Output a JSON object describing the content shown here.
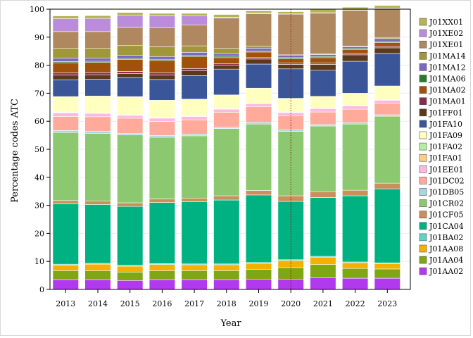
{
  "chart_data": {
    "type": "bar",
    "stacked": true,
    "title": "",
    "xlabel": "Year",
    "ylabel": "Percentage codes ATC",
    "ylim": [
      0,
      100
    ],
    "yticks": [
      0,
      10,
      20,
      30,
      40,
      50,
      60,
      70,
      80,
      90,
      100
    ],
    "legend_position": "right",
    "reference_line": {
      "x": "2020",
      "style": "dotted",
      "color": "#8B1A1A"
    },
    "categories": [
      "2013",
      "2014",
      "2015",
      "2016",
      "2017",
      "2018",
      "2019",
      "2020",
      "2021",
      "2022",
      "2023"
    ],
    "series": [
      {
        "name": "J01AA02",
        "color": "#B23AEE",
        "values": [
          3.5,
          3.5,
          3.2,
          3.5,
          3.5,
          3.5,
          3.7,
          3.7,
          4.2,
          4.0,
          4.0
        ]
      },
      {
        "name": "J01AA04",
        "color": "#7FA613",
        "values": [
          3.2,
          3.2,
          3.0,
          3.2,
          3.2,
          3.2,
          3.5,
          4.1,
          4.7,
          3.5,
          3.3
        ]
      },
      {
        "name": "J01AA08",
        "color": "#F5B000",
        "values": [
          2.0,
          2.3,
          2.1,
          2.2,
          2.1,
          2.1,
          2.1,
          2.5,
          2.6,
          2.0,
          1.9
        ]
      },
      {
        "name": "J01BA02",
        "color": "#5FD4C4",
        "values": [
          0.3,
          0.3,
          0.3,
          0.3,
          0.3,
          0.3,
          0.3,
          0.3,
          0.3,
          0.3,
          0.3
        ]
      },
      {
        "name": "J01CA04",
        "color": "#00B282",
        "values": [
          21.5,
          21.0,
          21.0,
          21.8,
          22.2,
          22.8,
          24.1,
          20.8,
          21.0,
          23.6,
          26.4
        ]
      },
      {
        "name": "J01CF05",
        "color": "#C8905A",
        "values": [
          1.2,
          1.3,
          1.3,
          1.3,
          1.3,
          1.5,
          1.6,
          2.0,
          2.1,
          2.0,
          2.0
        ]
      },
      {
        "name": "J01CR02",
        "color": "#8CC870",
        "values": [
          24.3,
          24.1,
          24.2,
          22.0,
          22.2,
          24.0,
          23.7,
          23.0,
          23.4,
          23.6,
          23.9
        ]
      },
      {
        "name": "J01DB05",
        "color": "#A8D4E6",
        "values": [
          0.7,
          0.7,
          0.5,
          0.6,
          0.6,
          0.5,
          0.6,
          0.5,
          0.5,
          0.5,
          0.5
        ]
      },
      {
        "name": "J01DC02",
        "color": "#FFAA9A",
        "values": [
          5.0,
          5.2,
          5.5,
          5.0,
          5.1,
          5.3,
          5.6,
          5.1,
          4.5,
          4.8,
          4.1
        ]
      },
      {
        "name": "J01EE01",
        "color": "#FFB8E0",
        "values": [
          1.3,
          1.2,
          1.0,
          1.2,
          1.2,
          1.1,
          1.1,
          1.1,
          1.2,
          1.2,
          1.1
        ]
      },
      {
        "name": "J01FA01",
        "color": "#FFCC80",
        "values": [
          0.1,
          0.1,
          0.1,
          0.1,
          0.1,
          0.1,
          0.1,
          0.1,
          0.1,
          0.1,
          0.1
        ]
      },
      {
        "name": "J01FA02",
        "color": "#B0F0A0",
        "values": [
          0.1,
          0.1,
          0.1,
          0.1,
          0.1,
          0.1,
          0.1,
          0.1,
          0.1,
          0.1,
          0.1
        ]
      },
      {
        "name": "J01FA09",
        "color": "#FFFFC0",
        "values": [
          5.6,
          6.0,
          6.5,
          6.2,
          6.0,
          4.9,
          5.3,
          4.9,
          4.2,
          4.3,
          4.9
        ]
      },
      {
        "name": "J01FA10",
        "color": "#3A5598",
        "values": [
          6.0,
          6.0,
          6.7,
          7.4,
          8.4,
          9.2,
          8.6,
          10.5,
          9.3,
          11.4,
          11.6
        ]
      },
      {
        "name": "J01FF01",
        "color": "#5A3A1A",
        "values": [
          1.7,
          1.6,
          1.5,
          1.6,
          1.7,
          1.4,
          1.8,
          1.6,
          2.1,
          2.3,
          2.0
        ]
      },
      {
        "name": "J01MA01",
        "color": "#8B2A4A",
        "values": [
          0.8,
          0.8,
          0.8,
          0.8,
          0.8,
          0.5,
          0.5,
          0.5,
          0.5,
          0.5,
          0.5
        ]
      },
      {
        "name": "J01MA02",
        "color": "#A0520A",
        "values": [
          3.6,
          3.6,
          4.2,
          4.4,
          4.3,
          2.2,
          2.0,
          1.5,
          1.9,
          1.4,
          1.4
        ]
      },
      {
        "name": "J01MA06",
        "color": "#2A7A2A",
        "values": [
          0.4,
          0.4,
          0.4,
          0.4,
          0.4,
          0.5,
          0.4,
          0.4,
          0.4,
          0.4,
          0.4
        ]
      },
      {
        "name": "J01MA12",
        "color": "#7A6ABE",
        "values": [
          1.2,
          1.1,
          1.1,
          1.0,
          1.1,
          1.0,
          1.0,
          0.9,
          0.7,
          0.6,
          1.0
        ]
      },
      {
        "name": "J01MA14",
        "color": "#A09838",
        "values": [
          3.5,
          3.5,
          3.5,
          3.5,
          2.3,
          1.8,
          0.7,
          0.1,
          0.3,
          0.2,
          0.4
        ]
      },
      {
        "name": "J01XE01",
        "color": "#B08860",
        "values": [
          6.0,
          6.0,
          6.5,
          6.8,
          7.5,
          10.8,
          11.6,
          14.5,
          14.5,
          12.8,
          10.3
        ]
      },
      {
        "name": "J01XE02",
        "color": "#BC8CDC",
        "values": [
          4.6,
          4.7,
          4.3,
          4.2,
          3.3,
          0.3,
          0.2,
          0.1,
          0.1,
          0.1,
          0.1
        ]
      },
      {
        "name": "J01XX01",
        "color": "#B4B454",
        "values": [
          1.0,
          1.0,
          1.0,
          0.9,
          0.8,
          1.0,
          0.8,
          0.8,
          1.3,
          1.0,
          1.0
        ]
      }
    ]
  }
}
